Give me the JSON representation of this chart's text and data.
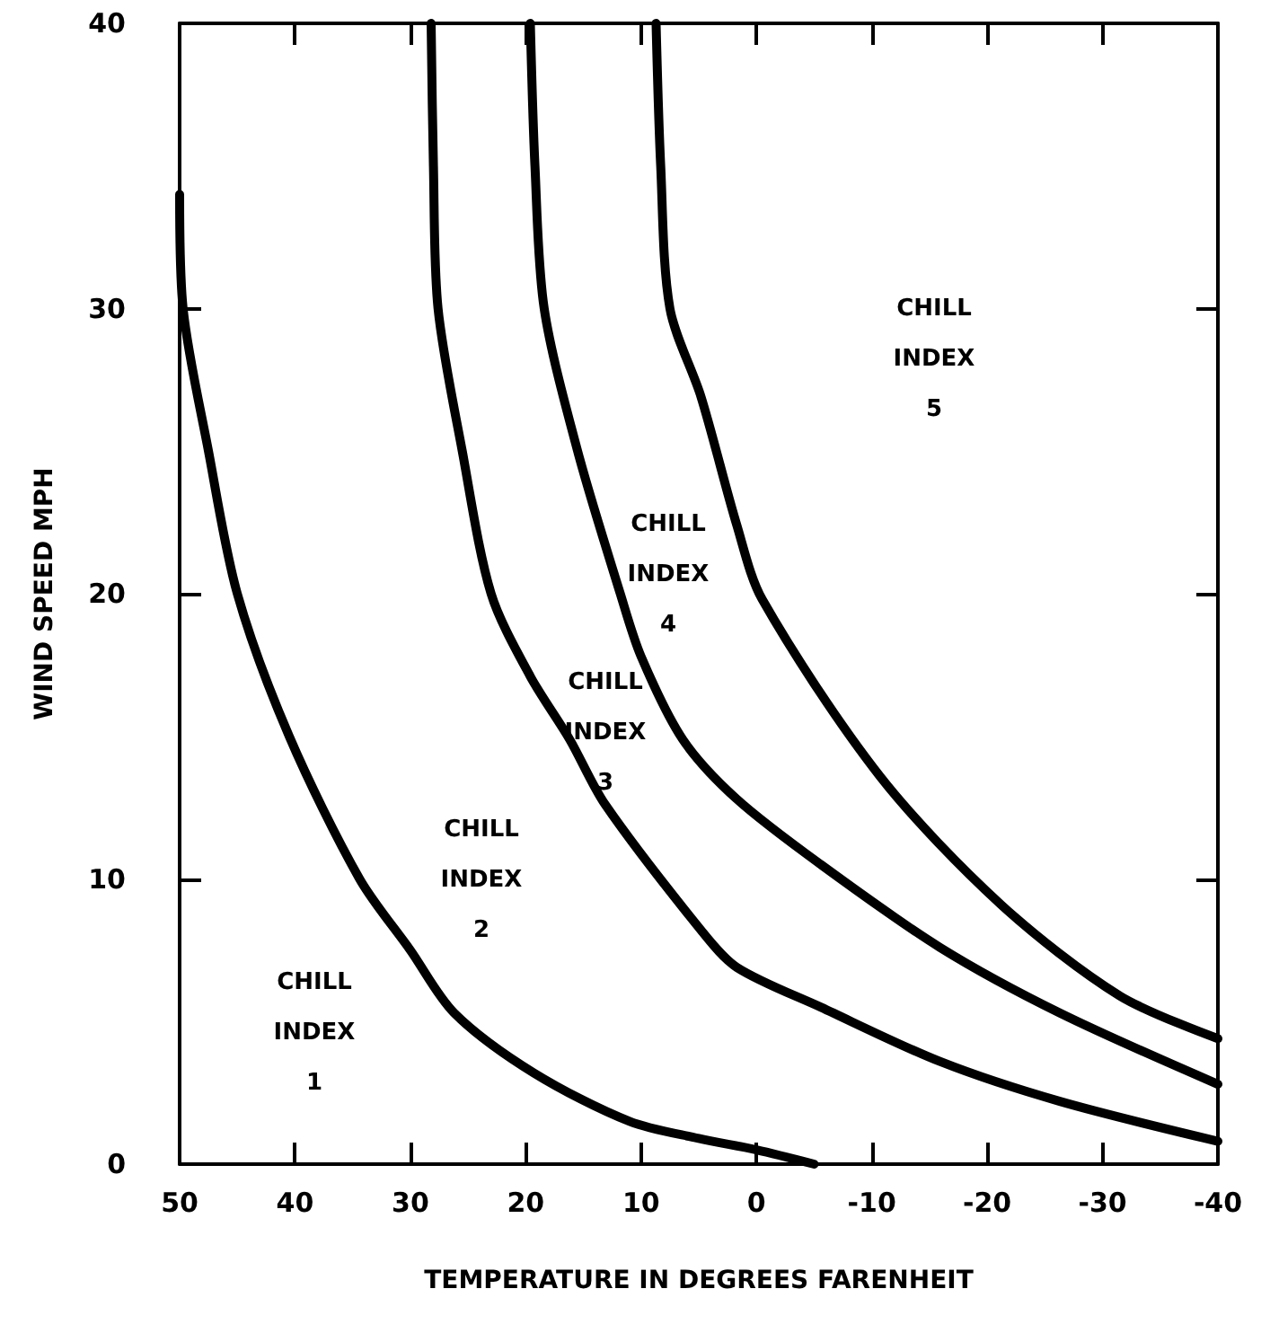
{
  "chart_data": {
    "type": "line",
    "xlabel": "TEMPERATURE IN DEGREES FARENHEIT",
    "ylabel": "WIND SPEED MPH",
    "xlim": [
      50,
      -40
    ],
    "xticks": [
      50,
      40,
      30,
      20,
      10,
      0,
      -10,
      -20,
      -30,
      -40
    ],
    "ylim": [
      0,
      40
    ],
    "yticks": [
      0,
      10,
      20,
      30,
      40
    ],
    "grid": false,
    "marker": "none",
    "line_style": "solid",
    "series": [
      {
        "color": "#000000",
        "x": [
          50,
          49.7,
          47.5,
          45,
          40.5,
          34.4,
          30,
          26.2,
          19.3,
          11,
          5,
          0,
          -5
        ],
        "values": [
          34,
          30,
          25,
          20,
          15,
          10,
          7.5,
          5.3,
          3.2,
          1.5,
          0.9,
          0.5,
          0
        ]
      },
      {
        "color": "#000000",
        "x": [
          28.2,
          28,
          27.6,
          25.5,
          23,
          19.6,
          16.2,
          13.1,
          4.8,
          1.7,
          -5.6,
          -15.9,
          -26.3,
          -40
        ],
        "values": [
          40,
          35,
          30,
          25,
          20,
          17.1,
          14.9,
          12.6,
          8.2,
          6.9,
          5.5,
          3.6,
          2.2,
          0.8
        ]
      },
      {
        "color": "#000000",
        "x": [
          19.6,
          19.2,
          18.4,
          15.5,
          11.8,
          10,
          6.4,
          1.7,
          -5.6,
          -15.9,
          -26.3,
          -40
        ],
        "values": [
          40,
          35,
          30,
          25,
          20,
          17.8,
          14.9,
          12.8,
          10.5,
          7.6,
          5.3,
          2.8
        ]
      },
      {
        "color": "#000000",
        "x": [
          8.7,
          8.3,
          7.5,
          4.8,
          1.7,
          -0.5,
          -10.7,
          -21.2,
          -31.5,
          -40
        ],
        "values": [
          40,
          35,
          30,
          26.9,
          22.4,
          19.8,
          13.6,
          9.1,
          5.9,
          4.4
        ]
      }
    ],
    "annotations": [
      "CHILL\nINDEX\n1",
      "CHILL\nINDEX\n2",
      "CHILL\nINDEX\n3",
      "CHILL\nINDEX\n4",
      "CHILL\nINDEX\n5"
    ]
  }
}
